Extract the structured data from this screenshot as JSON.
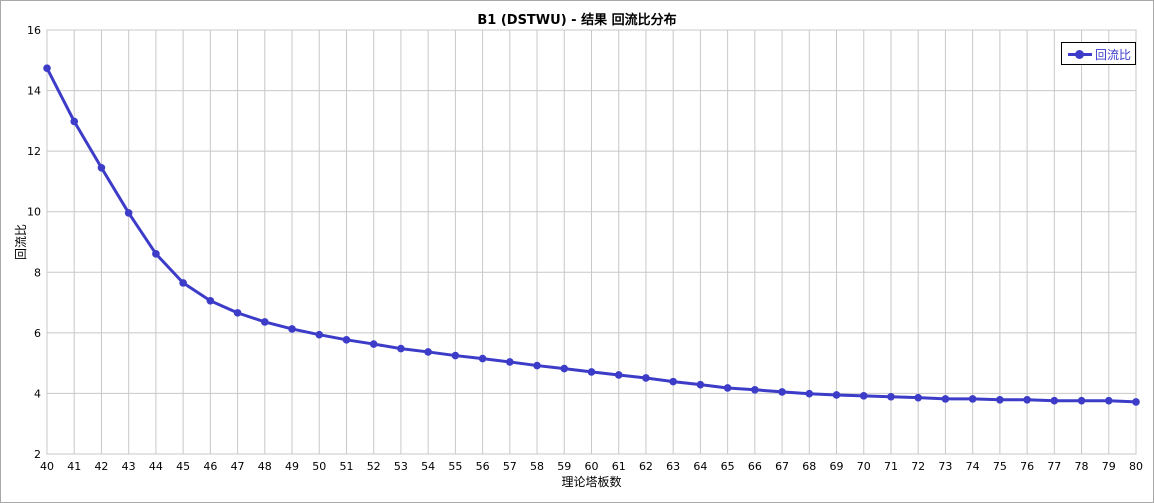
{
  "chart_data": {
    "type": "line",
    "title": "B1 (DSTWU) - 结果 回流比分布",
    "xlabel": "理论塔板数",
    "ylabel": "回流比",
    "xlim": [
      40,
      80
    ],
    "ylim": [
      2,
      16
    ],
    "yticks": [
      2,
      4,
      6,
      8,
      10,
      12,
      14,
      16
    ],
    "grid": true,
    "legend_position": "top-right",
    "x": [
      40,
      41,
      42,
      43,
      44,
      45,
      46,
      47,
      48,
      49,
      50,
      51,
      52,
      53,
      54,
      55,
      56,
      57,
      58,
      59,
      60,
      61,
      62,
      63,
      64,
      65,
      66,
      67,
      68,
      69,
      70,
      71,
      72,
      73,
      74,
      75,
      76,
      77,
      78,
      79,
      80
    ],
    "series": [
      {
        "name": "回流比",
        "color": "#3c3cc8",
        "values": [
          14.74,
          12.98,
          11.45,
          9.96,
          8.61,
          7.65,
          7.06,
          6.66,
          6.36,
          6.13,
          5.94,
          5.77,
          5.63,
          5.48,
          5.37,
          5.25,
          5.15,
          5.04,
          4.92,
          4.82,
          4.71,
          4.61,
          4.51,
          4.39,
          4.29,
          4.18,
          4.12,
          4.05,
          3.99,
          3.95,
          3.92,
          3.89,
          3.86,
          3.82,
          3.82,
          3.79,
          3.79,
          3.76,
          3.76,
          3.76,
          3.72
        ]
      }
    ]
  }
}
